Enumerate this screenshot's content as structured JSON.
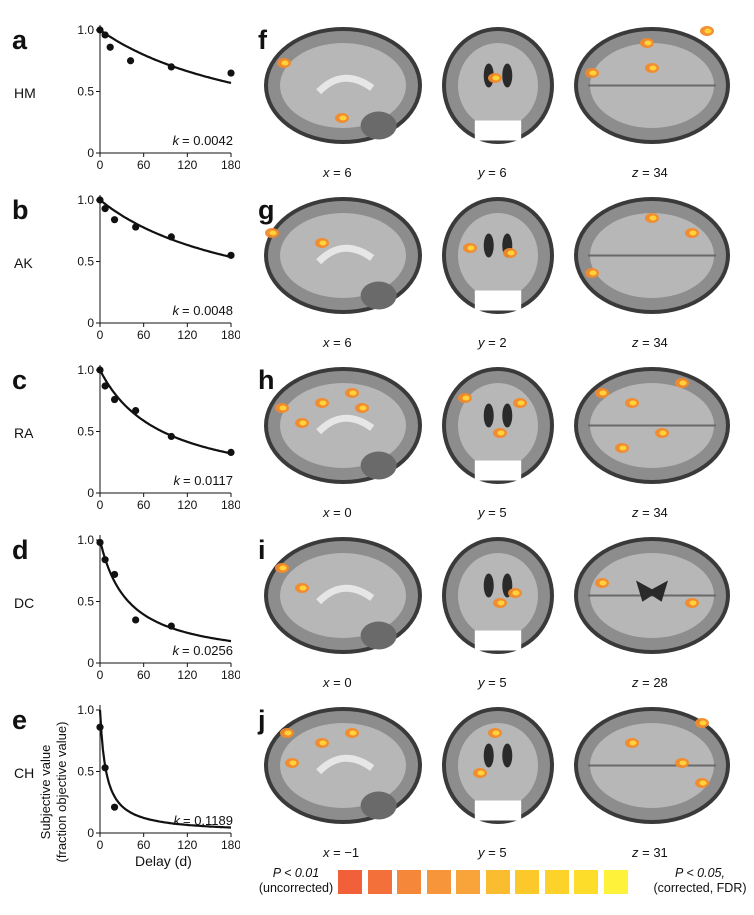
{
  "panels_left": [
    {
      "letter": "a",
      "subject": "HM",
      "k_text": "= 0.0042",
      "points": [
        [
          0,
          1.0
        ],
        [
          7,
          0.96
        ],
        [
          14,
          0.86
        ],
        [
          42,
          0.75
        ],
        [
          98,
          0.7
        ],
        [
          182,
          0.65
        ]
      ],
      "k": 0.0042
    },
    {
      "letter": "b",
      "subject": "AK",
      "k_text": "= 0.0048",
      "points": [
        [
          0,
          1.0
        ],
        [
          7,
          0.93
        ],
        [
          20,
          0.84
        ],
        [
          49,
          0.78
        ],
        [
          98,
          0.7
        ],
        [
          182,
          0.55
        ]
      ],
      "k": 0.0048
    },
    {
      "letter": "c",
      "subject": "RA",
      "k_text": "= 0.0117",
      "points": [
        [
          0,
          1.0
        ],
        [
          7,
          0.87
        ],
        [
          20,
          0.76
        ],
        [
          49,
          0.67
        ],
        [
          98,
          0.46
        ],
        [
          182,
          0.33
        ]
      ],
      "k": 0.0117
    },
    {
      "letter": "d",
      "subject": "DC",
      "k_text": "= 0.0256",
      "points": [
        [
          0,
          0.98
        ],
        [
          7,
          0.84
        ],
        [
          20,
          0.72
        ],
        [
          49,
          0.35
        ],
        [
          98,
          0.3
        ]
      ],
      "k": 0.0256
    },
    {
      "letter": "e",
      "subject": "CH",
      "k_text": "= 0.1189",
      "points": [
        [
          0,
          0.86
        ],
        [
          7,
          0.53
        ],
        [
          20,
          0.21
        ]
      ],
      "k": 0.1189
    }
  ],
  "axis": {
    "y_ticks": [
      "0",
      "0.5",
      "1.0"
    ],
    "x_ticks": [
      "0",
      "60",
      "120",
      "180"
    ],
    "xlabel": "Delay (d)",
    "ylabel_line1": "Subjective value",
    "ylabel_line2": "(fraction objective value)",
    "k_symbol": "k"
  },
  "chart_data": [
    {
      "type": "scatter",
      "title": "HM",
      "xlim": [
        0,
        180
      ],
      "ylim": [
        0,
        1.0
      ],
      "x": [
        0,
        7,
        14,
        42,
        98,
        182
      ],
      "y": [
        1.0,
        0.96,
        0.86,
        0.75,
        0.7,
        0.65
      ],
      "annotation": "k = 0.0042"
    },
    {
      "type": "scatter",
      "title": "AK",
      "xlim": [
        0,
        180
      ],
      "ylim": [
        0,
        1.0
      ],
      "x": [
        0,
        7,
        20,
        49,
        98,
        182
      ],
      "y": [
        1.0,
        0.93,
        0.84,
        0.78,
        0.7,
        0.55
      ],
      "annotation": "k = 0.0048"
    },
    {
      "type": "scatter",
      "title": "RA",
      "xlim": [
        0,
        180
      ],
      "ylim": [
        0,
        1.0
      ],
      "x": [
        0,
        7,
        20,
        49,
        98,
        182
      ],
      "y": [
        1.0,
        0.87,
        0.76,
        0.67,
        0.46,
        0.33
      ],
      "annotation": "k = 0.0117"
    },
    {
      "type": "scatter",
      "title": "DC",
      "xlim": [
        0,
        180
      ],
      "ylim": [
        0,
        1.0
      ],
      "x": [
        0,
        7,
        20,
        49,
        98
      ],
      "y": [
        0.98,
        0.84,
        0.72,
        0.35,
        0.3
      ],
      "annotation": "k = 0.0256"
    },
    {
      "type": "scatter",
      "title": "CH",
      "xlim": [
        0,
        180
      ],
      "ylim": [
        0,
        1.0
      ],
      "x": [
        0,
        7,
        20
      ],
      "y": [
        0.86,
        0.53,
        0.21
      ],
      "annotation": "k = 0.1189",
      "xlabel": "Delay (d)",
      "ylabel": "Subjective value (fraction objective value)"
    }
  ],
  "panels_right": [
    {
      "letter": "f",
      "coords": [
        {
          "axis": "x",
          "value": "= 6"
        },
        {
          "axis": "y",
          "value": "= 6"
        },
        {
          "axis": "z",
          "value": "= 34"
        }
      ]
    },
    {
      "letter": "g",
      "coords": [
        {
          "axis": "x",
          "value": "= 6"
        },
        {
          "axis": "y",
          "value": "= 2"
        },
        {
          "axis": "z",
          "value": "= 34"
        }
      ]
    },
    {
      "letter": "h",
      "coords": [
        {
          "axis": "x",
          "value": "= 0"
        },
        {
          "axis": "y",
          "value": "= 5"
        },
        {
          "axis": "z",
          "value": "= 34"
        }
      ]
    },
    {
      "letter": "i",
      "coords": [
        {
          "axis": "x",
          "value": "= 0"
        },
        {
          "axis": "y",
          "value": "= 5"
        },
        {
          "axis": "z",
          "value": "= 28"
        }
      ]
    },
    {
      "letter": "j",
      "coords": [
        {
          "axis": "x",
          "value": "= −1"
        },
        {
          "axis": "y",
          "value": "= 5"
        },
        {
          "axis": "z",
          "value": "= 31"
        }
      ]
    }
  ],
  "legend": {
    "left_line1": "P < 0.01",
    "left_line2": "(uncorrected)",
    "right_line1": "P < 0.05,",
    "right_line2": "(corrected, FDR)",
    "colors": [
      "#f2603a",
      "#f3703a",
      "#f5873a",
      "#f7953a",
      "#f9a43a",
      "#fbbd30",
      "#fcc82a",
      "#fdd22a",
      "#fedd2a",
      "#fff23a"
    ]
  }
}
